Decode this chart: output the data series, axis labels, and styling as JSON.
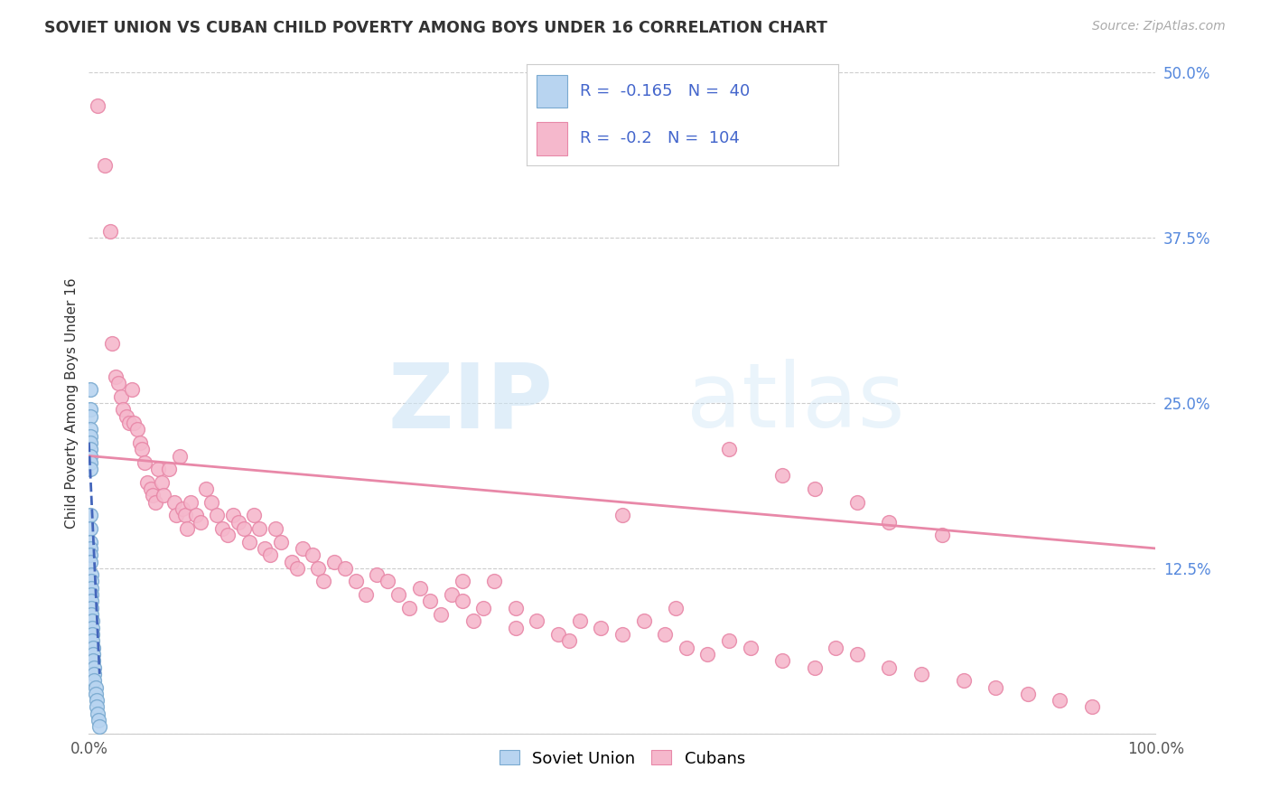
{
  "title": "SOVIET UNION VS CUBAN CHILD POVERTY AMONG BOYS UNDER 16 CORRELATION CHART",
  "source": "Source: ZipAtlas.com",
  "ylabel": "Child Poverty Among Boys Under 16",
  "xlim": [
    0.0,
    1.0
  ],
  "ylim": [
    0.0,
    0.5
  ],
  "yticks": [
    0.0,
    0.125,
    0.25,
    0.375,
    0.5
  ],
  "ytick_labels": [
    "",
    "12.5%",
    "25.0%",
    "37.5%",
    "50.0%"
  ],
  "background_color": "#ffffff",
  "grid_color": "#cccccc",
  "soviet_color": "#b8d4f0",
  "cuban_color": "#f5b8cc",
  "soviet_edge_color": "#7aaad0",
  "cuban_edge_color": "#e888a8",
  "trend_soviet_color": "#4466bb",
  "trend_cuban_color": "#e888a8",
  "soviet_R": -0.165,
  "soviet_N": 40,
  "cuban_R": -0.2,
  "cuban_N": 104,
  "legend_label_soviet": "Soviet Union",
  "legend_label_cuban": "Cubans",
  "watermark_zip": "ZIP",
  "watermark_atlas": "atlas",
  "cuban_x": [
    0.008,
    0.015,
    0.02,
    0.022,
    0.025,
    0.028,
    0.03,
    0.032,
    0.035,
    0.038,
    0.04,
    0.042,
    0.045,
    0.048,
    0.05,
    0.052,
    0.055,
    0.058,
    0.06,
    0.062,
    0.065,
    0.068,
    0.07,
    0.075,
    0.08,
    0.082,
    0.085,
    0.088,
    0.09,
    0.092,
    0.095,
    0.1,
    0.105,
    0.11,
    0.115,
    0.12,
    0.125,
    0.13,
    0.135,
    0.14,
    0.145,
    0.15,
    0.155,
    0.16,
    0.165,
    0.17,
    0.175,
    0.18,
    0.19,
    0.195,
    0.2,
    0.21,
    0.215,
    0.22,
    0.23,
    0.24,
    0.25,
    0.26,
    0.27,
    0.28,
    0.29,
    0.3,
    0.31,
    0.32,
    0.33,
    0.34,
    0.35,
    0.36,
    0.37,
    0.38,
    0.4,
    0.42,
    0.44,
    0.46,
    0.48,
    0.5,
    0.52,
    0.54,
    0.56,
    0.58,
    0.6,
    0.62,
    0.65,
    0.68,
    0.7,
    0.72,
    0.75,
    0.78,
    0.82,
    0.85,
    0.88,
    0.91,
    0.94,
    0.6,
    0.65,
    0.68,
    0.72,
    0.75,
    0.8,
    0.5,
    0.55,
    0.4,
    0.45,
    0.35
  ],
  "cuban_y": [
    0.475,
    0.43,
    0.38,
    0.295,
    0.27,
    0.265,
    0.255,
    0.245,
    0.24,
    0.235,
    0.26,
    0.235,
    0.23,
    0.22,
    0.215,
    0.205,
    0.19,
    0.185,
    0.18,
    0.175,
    0.2,
    0.19,
    0.18,
    0.2,
    0.175,
    0.165,
    0.21,
    0.17,
    0.165,
    0.155,
    0.175,
    0.165,
    0.16,
    0.185,
    0.175,
    0.165,
    0.155,
    0.15,
    0.165,
    0.16,
    0.155,
    0.145,
    0.165,
    0.155,
    0.14,
    0.135,
    0.155,
    0.145,
    0.13,
    0.125,
    0.14,
    0.135,
    0.125,
    0.115,
    0.13,
    0.125,
    0.115,
    0.105,
    0.12,
    0.115,
    0.105,
    0.095,
    0.11,
    0.1,
    0.09,
    0.105,
    0.1,
    0.085,
    0.095,
    0.115,
    0.095,
    0.085,
    0.075,
    0.085,
    0.08,
    0.075,
    0.085,
    0.075,
    0.065,
    0.06,
    0.07,
    0.065,
    0.055,
    0.05,
    0.065,
    0.06,
    0.05,
    0.045,
    0.04,
    0.035,
    0.03,
    0.025,
    0.02,
    0.215,
    0.195,
    0.185,
    0.175,
    0.16,
    0.15,
    0.165,
    0.095,
    0.08,
    0.07,
    0.115
  ],
  "soviet_x": [
    0.001,
    0.001,
    0.001,
    0.001,
    0.001,
    0.001,
    0.001,
    0.001,
    0.001,
    0.001,
    0.001,
    0.001,
    0.001,
    0.001,
    0.001,
    0.001,
    0.002,
    0.002,
    0.002,
    0.002,
    0.002,
    0.002,
    0.002,
    0.003,
    0.003,
    0.003,
    0.003,
    0.004,
    0.004,
    0.004,
    0.005,
    0.005,
    0.005,
    0.006,
    0.006,
    0.007,
    0.007,
    0.008,
    0.009,
    0.01
  ],
  "soviet_y": [
    0.26,
    0.245,
    0.24,
    0.23,
    0.225,
    0.22,
    0.215,
    0.21,
    0.205,
    0.2,
    0.165,
    0.155,
    0.145,
    0.14,
    0.135,
    0.13,
    0.12,
    0.115,
    0.11,
    0.105,
    0.1,
    0.095,
    0.09,
    0.085,
    0.08,
    0.075,
    0.07,
    0.065,
    0.06,
    0.055,
    0.05,
    0.045,
    0.04,
    0.035,
    0.03,
    0.025,
    0.02,
    0.015,
    0.01,
    0.005
  ],
  "cuban_trend_x": [
    0.0,
    1.0
  ],
  "cuban_trend_y": [
    0.21,
    0.14
  ],
  "soviet_trend_x": [
    0.0,
    0.01
  ],
  "soviet_trend_y": [
    0.22,
    0.045
  ]
}
